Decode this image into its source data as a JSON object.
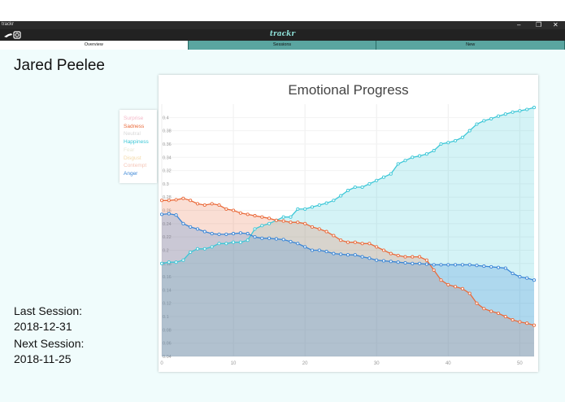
{
  "window": {
    "app_title": "trackr",
    "minimize": "–",
    "restore": "❐",
    "close": "✕"
  },
  "app": {
    "brand": "trackr",
    "logo_icon": "hand-icon",
    "camera_icon": "camera-icon"
  },
  "tabs": [
    {
      "label": "Overview",
      "active": true
    },
    {
      "label": "Sessions",
      "active": false
    },
    {
      "label": "New",
      "active": false
    }
  ],
  "patient": {
    "name": "Jared Peelee"
  },
  "sessions": {
    "last_label": "Last Session:",
    "last_date": "2018-12-31",
    "next_label": "Next Session:",
    "next_date": "2018-11-25"
  },
  "colors": {
    "sadness": "#ea6a3a",
    "happiness": "#3cc7d7",
    "anger": "#3a86d6",
    "surprise": "#f4b8c8",
    "neutral": "#d8d8d8",
    "fear": "#e8e8d8",
    "disgust": "#f3d9a8",
    "contempt": "#f5c6b8"
  },
  "legend": [
    {
      "label": "Surprise",
      "color": "#f4b8c8"
    },
    {
      "label": "Sadness",
      "color": "#ea6a3a"
    },
    {
      "label": "Neutral",
      "color": "#d8d8d8"
    },
    {
      "label": "Happiness",
      "color": "#3cc7d7"
    },
    {
      "label": "Fear",
      "color": "#e8e8d8"
    },
    {
      "label": "Disgust",
      "color": "#f3d9a8"
    },
    {
      "label": "Contempt",
      "color": "#f5c6b8"
    },
    {
      "label": "Anger",
      "color": "#3a86d6"
    }
  ],
  "chart_data": {
    "type": "area",
    "title": "Emotional Progress",
    "xlim": [
      0,
      52
    ],
    "ylim": [
      0.04,
      0.42
    ],
    "x_ticks": [
      0,
      10,
      20,
      30,
      40,
      50
    ],
    "y_ticks": [
      "0.04",
      "0.06",
      "0.08",
      "0.1",
      "0.12",
      "0.14",
      "0.16",
      "0.18",
      "0.2",
      "0.22",
      "0.24",
      "0.26",
      "0.28",
      "0.3",
      "0.32",
      "0.34",
      "0.36",
      "0.38",
      "0.4"
    ],
    "grid": true,
    "legend_position": "left-outside",
    "series": [
      {
        "name": "Happiness",
        "color": "#3cc7d7",
        "values": [
          0.18,
          0.182,
          0.182,
          0.185,
          0.197,
          0.202,
          0.202,
          0.205,
          0.21,
          0.21,
          0.212,
          0.212,
          0.215,
          0.232,
          0.237,
          0.24,
          0.245,
          0.25,
          0.25,
          0.262,
          0.262,
          0.265,
          0.268,
          0.271,
          0.275,
          0.282,
          0.29,
          0.295,
          0.295,
          0.3,
          0.305,
          0.31,
          0.315,
          0.33,
          0.335,
          0.34,
          0.342,
          0.345,
          0.35,
          0.36,
          0.362,
          0.365,
          0.37,
          0.38,
          0.39,
          0.395,
          0.398,
          0.402,
          0.405,
          0.408,
          0.41,
          0.412,
          0.415
        ]
      },
      {
        "name": "Sadness",
        "color": "#ea6a3a",
        "values": [
          0.275,
          0.275,
          0.276,
          0.278,
          0.275,
          0.27,
          0.268,
          0.27,
          0.268,
          0.262,
          0.26,
          0.256,
          0.254,
          0.252,
          0.25,
          0.248,
          0.245,
          0.244,
          0.242,
          0.242,
          0.24,
          0.235,
          0.232,
          0.228,
          0.222,
          0.215,
          0.212,
          0.212,
          0.21,
          0.21,
          0.205,
          0.2,
          0.195,
          0.192,
          0.19,
          0.19,
          0.19,
          0.185,
          0.17,
          0.155,
          0.148,
          0.145,
          0.142,
          0.135,
          0.12,
          0.112,
          0.108,
          0.105,
          0.1,
          0.095,
          0.092,
          0.09,
          0.087
        ]
      },
      {
        "name": "Anger",
        "color": "#3a86d6",
        "values": [
          0.254,
          0.255,
          0.253,
          0.24,
          0.235,
          0.232,
          0.228,
          0.225,
          0.224,
          0.224,
          0.225,
          0.226,
          0.225,
          0.22,
          0.218,
          0.218,
          0.217,
          0.216,
          0.213,
          0.21,
          0.205,
          0.2,
          0.2,
          0.198,
          0.195,
          0.194,
          0.193,
          0.193,
          0.19,
          0.188,
          0.185,
          0.184,
          0.183,
          0.182,
          0.181,
          0.18,
          0.18,
          0.179,
          0.178,
          0.178,
          0.178,
          0.178,
          0.178,
          0.178,
          0.177,
          0.176,
          0.175,
          0.174,
          0.173,
          0.165,
          0.16,
          0.158,
          0.155
        ]
      }
    ]
  }
}
